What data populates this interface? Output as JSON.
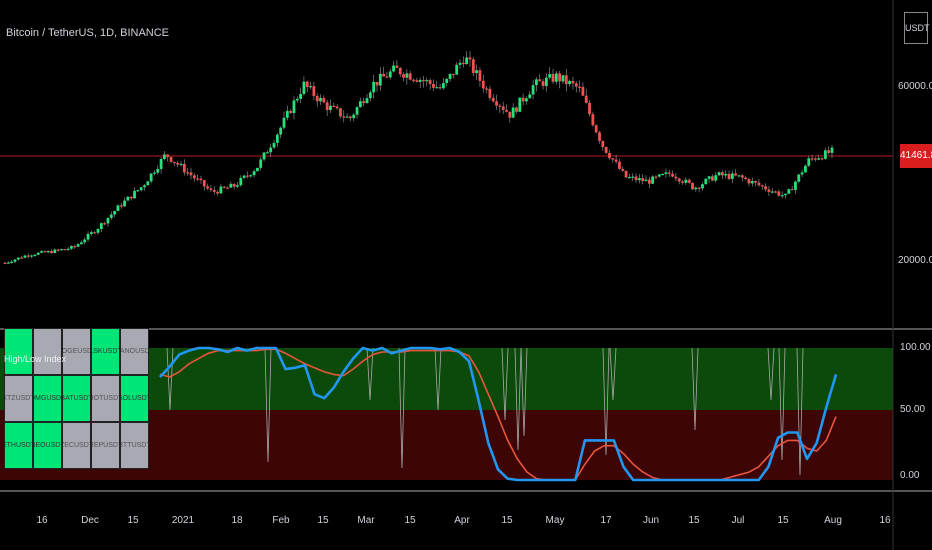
{
  "header": {
    "symbol_title": "Bitcoin / TetherUS, 1D, BINANCE",
    "currency": "USDT",
    "last_price": "41461.83"
  },
  "price_axis": {
    "ticks": [
      "60000.00",
      "20000.00"
    ]
  },
  "indicator_axis": {
    "ticks": [
      "100.00",
      "50.00",
      "0.00"
    ]
  },
  "x_axis": {
    "ticks": [
      "16",
      "Dec",
      "15",
      "2021",
      "18",
      "Feb",
      "15",
      "Mar",
      "15",
      "Apr",
      "15",
      "May",
      "17",
      "Jun",
      "15",
      "Jul",
      "15",
      "Aug",
      "16"
    ]
  },
  "indicator_table": {
    "title": "High/Low Index",
    "rows": [
      [
        {
          "label": "",
          "color": "green"
        },
        {
          "label": "",
          "color": "gray"
        },
        {
          "label": "DOGEUSDT",
          "color": "gray"
        },
        {
          "label": "LSKUSDT",
          "color": "green"
        },
        {
          "label": "NANOUSDT",
          "color": "gray"
        }
      ],
      [
        {
          "label": "XTZUSDT",
          "color": "gray"
        },
        {
          "label": "OMGUSDT",
          "color": "green"
        },
        {
          "label": "BATUSDT",
          "color": "green"
        },
        {
          "label": "HOTUSDT",
          "color": "gray"
        },
        {
          "label": "SOLUSDT",
          "color": "green"
        }
      ],
      [
        {
          "label": "ETHUSDT",
          "color": "green"
        },
        {
          "label": "NEOUSDT",
          "color": "green"
        },
        {
          "label": "ZECUSDT",
          "color": "gray"
        },
        {
          "label": "REPUSDT",
          "color": "gray"
        },
        {
          "label": "BTTUSDT",
          "color": "gray"
        }
      ]
    ]
  },
  "colors": {
    "up": "#26e07a",
    "down": "#ef5350",
    "blue_line": "#2196f3",
    "red_line": "#e8553e",
    "upper_zone": "#0b4a0b",
    "lower_zone": "#3d0505",
    "price_line": "#b71c1c",
    "table_green": "#00e676",
    "table_gray": "#a9a9b4"
  },
  "chart_data": [
    {
      "type": "candlestick",
      "title": "Bitcoin / TetherUS, 1D, BINANCE",
      "ylim": [
        0,
        72000
      ],
      "last_price": 41461.83,
      "x_labels": [
        "16",
        "Dec",
        "15",
        "2021",
        "18",
        "Feb",
        "15",
        "Mar",
        "15",
        "Apr",
        "15",
        "May",
        "17",
        "Jun",
        "15",
        "Jul",
        "15",
        "Aug",
        "16"
      ],
      "close_path": [
        15600,
        17500,
        18200,
        19200,
        23500,
        28900,
        33500,
        40800,
        36400,
        32000,
        33500,
        38000,
        47000,
        57000,
        52000,
        49000,
        57000,
        60500,
        58500,
        56000,
        63500,
        55500,
        50000,
        56800,
        58800,
        56000,
        43000,
        35500,
        34500,
        36500,
        33000,
        36000,
        35500,
        33200,
        31000,
        39500,
        41461.83
      ]
    },
    {
      "type": "line",
      "title": "High/Low Index",
      "ylim": [
        0,
        100
      ],
      "zones": [
        {
          "from": 50,
          "to": 100,
          "name": "upper"
        },
        {
          "from": 0,
          "to": 50,
          "name": "lower"
        }
      ],
      "series": [
        {
          "name": "",
          "values": [
            78,
            86,
            95,
            98,
            100,
            100,
            99,
            97,
            100,
            98,
            100,
            100,
            100,
            84,
            85,
            87,
            65,
            62,
            70,
            82,
            92,
            100,
            98,
            100,
            96,
            98,
            100,
            100,
            100,
            99,
            100,
            97,
            90,
            60,
            28,
            8,
            1,
            0,
            0,
            0,
            0,
            0,
            0,
            0,
            30,
            30,
            30,
            30,
            10,
            0,
            0,
            0,
            0,
            0,
            0,
            0,
            0,
            0,
            0,
            0,
            0,
            0,
            0,
            10,
            32,
            36,
            36,
            16,
            28,
            55,
            80
          ]
        },
        {
          "name": "",
          "values": [
            80,
            78,
            82,
            88,
            92,
            96,
            98,
            98,
            98,
            98,
            98,
            99,
            99,
            96,
            92,
            88,
            85,
            82,
            80,
            79,
            84,
            90,
            95,
            97,
            97,
            97,
            98,
            98,
            98,
            98,
            98,
            97,
            94,
            82,
            65,
            48,
            30,
            16,
            6,
            1,
            0,
            0,
            0,
            0,
            12,
            22,
            26,
            26,
            20,
            12,
            6,
            2,
            0,
            0,
            0,
            0,
            0,
            0,
            0,
            2,
            4,
            6,
            10,
            18,
            26,
            30,
            30,
            24,
            22,
            30,
            48
          ]
        }
      ]
    }
  ]
}
